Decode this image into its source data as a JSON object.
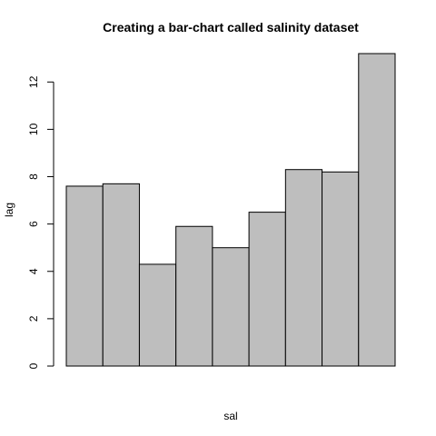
{
  "chart_data": {
    "type": "bar",
    "title": "Creating a bar-chart called salinity dataset",
    "xlabel": "sal",
    "ylabel": "lag",
    "values": [
      7.6,
      7.7,
      4.3,
      5.9,
      5.0,
      6.5,
      8.3,
      8.2,
      13.2
    ],
    "ylim": [
      0,
      13.2
    ],
    "yticks": [
      0,
      2,
      4,
      6,
      8,
      10,
      12
    ],
    "bar_color": "#bebebe",
    "grid": false
  }
}
